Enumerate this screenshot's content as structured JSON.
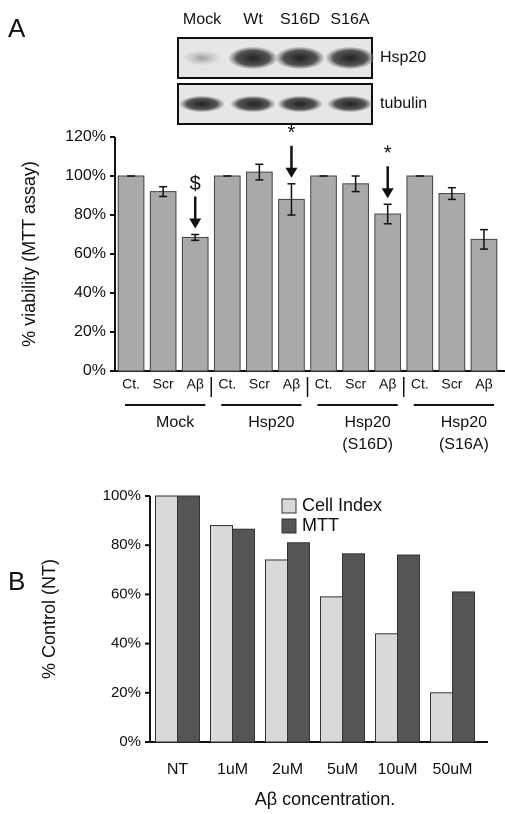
{
  "panel_labels": [
    "A",
    "B"
  ],
  "blot": {
    "lanes": [
      "Mock",
      "Wt",
      "S16D",
      "S16A"
    ],
    "rows": [
      "Hsp20",
      "tubulin"
    ]
  },
  "chart_data": [
    {
      "type": "bar",
      "ylabel": "% viability (MTT assay)",
      "categories": [
        "Ct.",
        "Scr",
        "Aβ",
        "Ct.",
        "Scr",
        "Aβ",
        "Ct.",
        "Scr",
        "Aβ",
        "Ct.",
        "Scr",
        "Aβ"
      ],
      "values": [
        100,
        92,
        68.5,
        100,
        102,
        88,
        100,
        96,
        80.5,
        100,
        91,
        67.5
      ],
      "errors": [
        0,
        2.5,
        1.5,
        0,
        4,
        8,
        0,
        4,
        5,
        0,
        3,
        5
      ],
      "annotations": [
        null,
        null,
        "$",
        null,
        null,
        "*",
        null,
        null,
        "*",
        null,
        null,
        null
      ],
      "groups": [
        [
          "Mock"
        ],
        [
          "Hsp20"
        ],
        [
          "Hsp20",
          "(S16D)"
        ],
        [
          "Hsp20",
          "(S16A)"
        ]
      ],
      "color": "#a9a9a9",
      "ylim": [
        0,
        120
      ],
      "yticks": [
        {
          "value": 0,
          "label": "0%"
        },
        {
          "value": 20,
          "label": "20%"
        },
        {
          "value": 40,
          "label": "40%"
        },
        {
          "value": 60,
          "label": "60%"
        },
        {
          "value": 80,
          "label": "80%"
        },
        {
          "value": 100,
          "label": "100%"
        },
        {
          "value": 120,
          "label": "120%"
        }
      ]
    },
    {
      "type": "bar",
      "ylabel": "% Control (NT)",
      "xlabel": "Aβ concentration.",
      "categories": [
        "NT",
        "1uM",
        "2uM",
        "5uM",
        "10uM",
        "50uM"
      ],
      "series": [
        {
          "name": "Cell Index",
          "color": "#d9d9d9",
          "values": [
            100,
            88,
            74,
            59,
            44,
            20
          ]
        },
        {
          "name": "MTT",
          "color": "#555555",
          "values": [
            100,
            86.5,
            81,
            76.5,
            76,
            61
          ]
        }
      ],
      "ylim": [
        0,
        100
      ],
      "yticks": [
        {
          "value": 0,
          "label": "0%"
        },
        {
          "value": 20,
          "label": "20%"
        },
        {
          "value": 40,
          "label": "40%"
        },
        {
          "value": 60,
          "label": "60%"
        },
        {
          "value": 80,
          "label": "80%"
        },
        {
          "value": 100,
          "label": "100%"
        }
      ]
    }
  ]
}
